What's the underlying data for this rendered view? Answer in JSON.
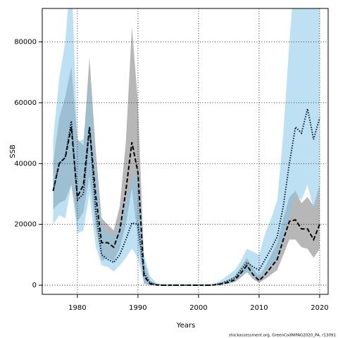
{
  "chart_data": {
    "type": "line",
    "xlabel": "Years",
    "ylabel": "SSB",
    "footnote": "stockassessment.org, GreenCodNIPAG2020_PA, r13091",
    "x": [
      1976,
      1977,
      1978,
      1979,
      1980,
      1981,
      1982,
      1983,
      1984,
      1985,
      1986,
      1987,
      1988,
      1989,
      1990,
      1991,
      1992,
      1993,
      1994,
      1995,
      1996,
      1997,
      1998,
      1999,
      2000,
      2001,
      2002,
      2003,
      2004,
      2005,
      2006,
      2007,
      2008,
      2009,
      2010,
      2011,
      2012,
      2013,
      2014,
      2015,
      2016,
      2017,
      2018,
      2019,
      2020
    ],
    "xlim": [
      1974.2,
      2021.4
    ],
    "xticks": [
      1980,
      1990,
      2000,
      2010,
      2020
    ],
    "ylim": [
      -3000,
      91000
    ],
    "yticks": [
      0,
      20000,
      40000,
      60000,
      80000
    ],
    "grid": true,
    "series": [
      {
        "color": "#000000",
        "linestyle": "dashed",
        "band_color": "#b3b3b3",
        "values": [
          31000,
          40000,
          42000,
          52000,
          29000,
          33000,
          52000,
          30000,
          14000,
          14000,
          12500,
          18000,
          31000,
          47000,
          37000,
          3000,
          500,
          100,
          0,
          0,
          0,
          0,
          0,
          0,
          0,
          0,
          0,
          200,
          500,
          1000,
          1800,
          4000,
          6500,
          3500,
          1500,
          3500,
          6000,
          8500,
          15000,
          21000,
          21500,
          18500,
          18500,
          15000,
          20000
        ],
        "lower": [
          25000,
          27000,
          28000,
          33000,
          21000,
          24000,
          36000,
          19000,
          8000,
          9000,
          8000,
          12000,
          20000,
          32000,
          15000,
          500,
          0,
          0,
          0,
          0,
          0,
          0,
          0,
          0,
          0,
          0,
          0,
          0,
          200,
          500,
          1000,
          2500,
          4500,
          2000,
          800,
          2000,
          3500,
          5000,
          10000,
          15000,
          15000,
          12500,
          12000,
          9000,
          12000
        ],
        "upper": [
          40000,
          55000,
          62000,
          72000,
          48000,
          46000,
          75000,
          45000,
          22000,
          20000,
          18000,
          26000,
          47000,
          85000,
          60000,
          8000,
          1500,
          500,
          0,
          0,
          0,
          0,
          0,
          0,
          0,
          0,
          0,
          500,
          1000,
          2000,
          3000,
          6000,
          9000,
          5500,
          3000,
          6000,
          10000,
          14000,
          22000,
          29000,
          31000,
          27000,
          29000,
          26000,
          33000
        ]
      },
      {
        "color": "#0a1a2a",
        "linestyle": "dotted",
        "band_color": "#87c8ea",
        "values": [
          31000,
          40000,
          42000,
          54000,
          28000,
          30000,
          52000,
          25000,
          10000,
          8500,
          7500,
          10000,
          15000,
          20500,
          20000,
          4000,
          800,
          200,
          0,
          0,
          0,
          0,
          0,
          0,
          0,
          0,
          0,
          300,
          800,
          1500,
          2500,
          5000,
          7500,
          6000,
          5000,
          8500,
          12000,
          16000,
          26000,
          40000,
          52000,
          50000,
          58000,
          48000,
          55000
        ],
        "lower": [
          20000,
          23000,
          22000,
          33000,
          17000,
          18000,
          30000,
          13000,
          6500,
          6000,
          4500,
          6500,
          9000,
          12000,
          9000,
          500,
          0,
          0,
          0,
          0,
          0,
          0,
          0,
          0,
          0,
          0,
          0,
          0,
          200,
          500,
          1000,
          3000,
          4000,
          2500,
          1500,
          3500,
          6000,
          8000,
          14000,
          22000,
          30000,
          28000,
          33000,
          25000,
          30000
        ],
        "upper": [
          48000,
          68000,
          80000,
          105000,
          47000,
          48000,
          68000,
          40000,
          20000,
          17000,
          16000,
          20000,
          28000,
          34000,
          37000,
          10000,
          3000,
          800,
          300,
          300,
          300,
          300,
          300,
          300,
          300,
          300,
          300,
          800,
          2000,
          3500,
          5000,
          8000,
          12000,
          11000,
          10000,
          17000,
          22000,
          28000,
          50000,
          80000,
          105000,
          105000,
          120000,
          100000,
          110000
        ]
      }
    ]
  }
}
